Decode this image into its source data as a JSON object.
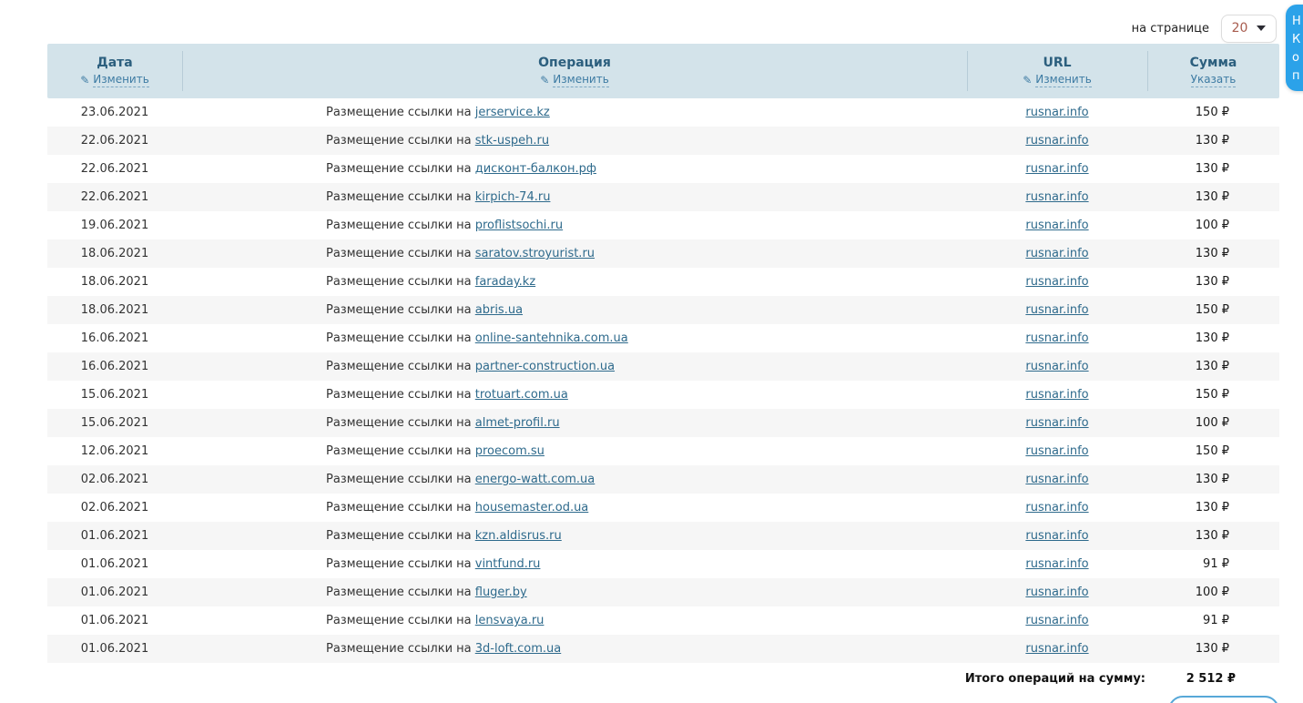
{
  "topbar": {
    "per_page_label": "на странице",
    "per_page_value": "20"
  },
  "floating_widget": {
    "lines": [
      "Н",
      "К",
      "о",
      "п"
    ],
    "color": "#2ba2e9"
  },
  "table": {
    "columns": [
      {
        "title": "Дата",
        "action": "Изменить",
        "has_pencil": true
      },
      {
        "title": "Операция",
        "action": "Изменить",
        "has_pencil": true
      },
      {
        "title": "URL",
        "action": "Изменить",
        "has_pencil": true
      },
      {
        "title": "Сумма",
        "action": "Указать",
        "has_pencil": false
      }
    ],
    "operation_prefix": "Размещение ссылки на",
    "rows": [
      {
        "date": "23.06.2021",
        "site": "jerservice.kz",
        "url": "rusnar.info",
        "sum": "150 ₽"
      },
      {
        "date": "22.06.2021",
        "site": "stk-uspeh.ru",
        "url": "rusnar.info",
        "sum": "130 ₽"
      },
      {
        "date": "22.06.2021",
        "site": "дисконт-балкон.рф",
        "url": "rusnar.info",
        "sum": "130 ₽"
      },
      {
        "date": "22.06.2021",
        "site": "kirpich-74.ru",
        "url": "rusnar.info",
        "sum": "130 ₽"
      },
      {
        "date": "19.06.2021",
        "site": "proflistsochi.ru",
        "url": "rusnar.info",
        "sum": "100 ₽"
      },
      {
        "date": "18.06.2021",
        "site": "saratov.stroyurist.ru",
        "url": "rusnar.info",
        "sum": "130 ₽"
      },
      {
        "date": "18.06.2021",
        "site": "faraday.kz",
        "url": "rusnar.info",
        "sum": "130 ₽"
      },
      {
        "date": "18.06.2021",
        "site": "abris.ua",
        "url": "rusnar.info",
        "sum": "150 ₽"
      },
      {
        "date": "16.06.2021",
        "site": "online-santehnika.com.ua",
        "url": "rusnar.info",
        "sum": "130 ₽"
      },
      {
        "date": "16.06.2021",
        "site": "partner-construction.ua",
        "url": "rusnar.info",
        "sum": "130 ₽"
      },
      {
        "date": "15.06.2021",
        "site": "trotuart.com.ua",
        "url": "rusnar.info",
        "sum": "150 ₽"
      },
      {
        "date": "15.06.2021",
        "site": "almet-profil.ru",
        "url": "rusnar.info",
        "sum": "100 ₽"
      },
      {
        "date": "12.06.2021",
        "site": "proecom.su",
        "url": "rusnar.info",
        "sum": "150 ₽"
      },
      {
        "date": "02.06.2021",
        "site": "energo-watt.com.ua",
        "url": "rusnar.info",
        "sum": "130 ₽"
      },
      {
        "date": "02.06.2021",
        "site": "housemaster.od.ua",
        "url": "rusnar.info",
        "sum": "130 ₽"
      },
      {
        "date": "01.06.2021",
        "site": "kzn.aldisrus.ru",
        "url": "rusnar.info",
        "sum": "130 ₽"
      },
      {
        "date": "01.06.2021",
        "site": "vintfund.ru",
        "url": "rusnar.info",
        "sum": "91 ₽"
      },
      {
        "date": "01.06.2021",
        "site": "fluger.by",
        "url": "rusnar.info",
        "sum": "100 ₽"
      },
      {
        "date": "01.06.2021",
        "site": "lensvaya.ru",
        "url": "rusnar.info",
        "sum": "91 ₽"
      },
      {
        "date": "01.06.2021",
        "site": "3d-loft.com.ua",
        "url": "rusnar.info",
        "sum": "130 ₽"
      }
    ],
    "footer": {
      "label": "Итого операций на сумму:",
      "total": "2 512 ₽"
    }
  },
  "colors": {
    "header_bg": "#d3e3ea",
    "header_text": "#2c5f7e",
    "link": "#2e6a8c",
    "row_stripe": "#f6f6f6",
    "per_page_value": "#a85c4e",
    "widget_blue": "#2ba2e9",
    "button_border": "#57a8d8"
  }
}
